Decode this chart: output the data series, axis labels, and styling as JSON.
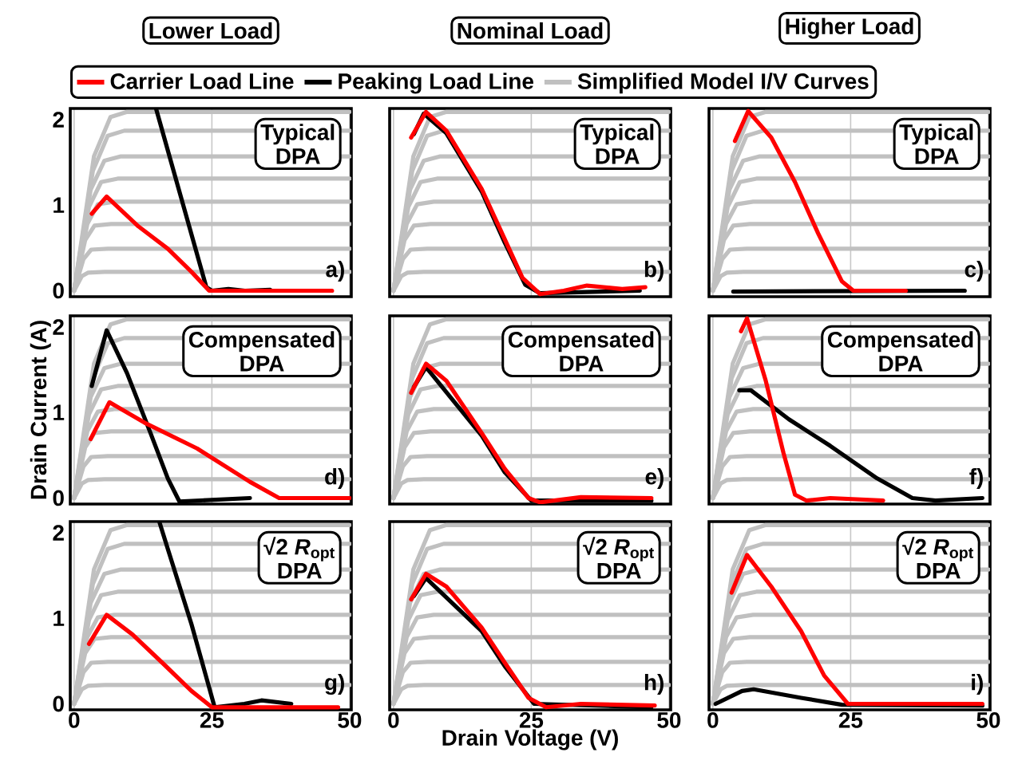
{
  "chart_data": [
    {
      "type": "line",
      "title": "Lower Load",
      "legend": "top",
      "grid": "x",
      "tick_labels": "y",
      "xlim": [
        -0.7,
        50.3
      ],
      "ylim": [
        -0.07,
        2.13
      ],
      "xticks": [
        0,
        25,
        50
      ],
      "yticks": [
        0,
        1,
        2
      ],
      "annotations": [
        "Typical",
        "DPA",
        "a)"
      ],
      "series": [
        {
          "name": "Carrier Load Line",
          "color": "#ff0000",
          "x": [
            3.2,
            5.9,
            11.7,
            17,
            21.3,
            24.5,
            30,
            46.8
          ],
          "values": [
            0.9,
            1.1,
            0.75,
            0.49,
            0.22,
            0,
            0,
            0
          ]
        },
        {
          "name": "Peaking Load Line",
          "color": "#000000",
          "x": [
            14.9,
            24,
            25,
            28,
            31,
            35.6
          ],
          "values": [
            2.12,
            0.04,
            0,
            0.02,
            0,
            0.01
          ]
        },
        {
          "name": "Simplified Model I/V Curves",
          "color": "#c0c0c0",
          "x": [
            0,
            1.4,
            2.5,
            5.5,
            50
          ],
          "values": [
            0,
            0.17,
            0.21,
            0.22,
            0.22
          ]
        },
        {
          "color": "#c0c0c0",
          "x": [
            0,
            1.7,
            3.1,
            6.1,
            50
          ],
          "values": [
            0,
            0.37,
            0.48,
            0.49,
            0.49
          ]
        },
        {
          "color": "#c0c0c0",
          "x": [
            0,
            2,
            3.7,
            6.7,
            50
          ],
          "values": [
            0,
            0.59,
            0.76,
            0.78,
            0.78
          ]
        },
        {
          "color": "#c0c0c0",
          "x": [
            0,
            2.4,
            4.3,
            7.3,
            50
          ],
          "values": [
            0,
            0.78,
            1.01,
            1.04,
            1.04
          ]
        },
        {
          "color": "#c0c0c0",
          "x": [
            0,
            2.7,
            4.9,
            7.9,
            50
          ],
          "values": [
            0,
            0.98,
            1.27,
            1.31,
            1.31
          ]
        },
        {
          "color": "#c0c0c0",
          "x": [
            0,
            3,
            5.5,
            8.5,
            50
          ],
          "values": [
            0,
            1.18,
            1.52,
            1.57,
            1.57
          ]
        },
        {
          "color": "#c0c0c0",
          "x": [
            0,
            3.4,
            6.1,
            9.1,
            50
          ],
          "values": [
            0,
            1.4,
            1.81,
            1.87,
            1.87
          ]
        },
        {
          "color": "#c0c0c0",
          "x": [
            0,
            3.6,
            6.6,
            9.6,
            50
          ],
          "values": [
            0,
            1.57,
            2.03,
            2.09,
            2.09
          ]
        }
      ]
    },
    {
      "type": "line",
      "title": "Nominal Load",
      "grid": "x",
      "tick_labels": false,
      "xlim": [
        -0.7,
        50.3
      ],
      "ylim": [
        -0.07,
        2.13
      ],
      "xticks": [
        0,
        25,
        50
      ],
      "yticks": [
        0,
        1,
        2
      ],
      "annotations": [
        "Typical",
        "DPA",
        "b)"
      ],
      "series": [
        {
          "color": "#ff0000",
          "x": [
            3.2,
            5.9,
            9.6,
            16,
            20.2,
            23.4,
            26.6,
            30.9,
            35.1,
            41.5,
            45.7
          ],
          "values": [
            1.79,
            2.09,
            1.87,
            1.19,
            0.6,
            0.15,
            -0.04,
            0,
            0.06,
            0.02,
            0.04
          ]
        },
        {
          "color": "#000000",
          "x": [
            3.7,
            5.5,
            9.6,
            16,
            20.2,
            23.9,
            26.6,
            44.7
          ],
          "values": [
            1.83,
            2.07,
            1.84,
            1.16,
            0.56,
            0.07,
            -0.03,
            0
          ]
        },
        {
          "color": "#c0c0c0",
          "x": [
            0,
            1.4,
            2.5,
            5.5,
            50
          ],
          "values": [
            0,
            0.17,
            0.21,
            0.22,
            0.22
          ]
        },
        {
          "color": "#c0c0c0",
          "x": [
            0,
            1.7,
            3.1,
            6.1,
            50
          ],
          "values": [
            0,
            0.37,
            0.48,
            0.49,
            0.49
          ]
        },
        {
          "color": "#c0c0c0",
          "x": [
            0,
            2,
            3.7,
            6.7,
            50
          ],
          "values": [
            0,
            0.59,
            0.76,
            0.78,
            0.78
          ]
        },
        {
          "color": "#c0c0c0",
          "x": [
            0,
            2.4,
            4.3,
            7.3,
            50
          ],
          "values": [
            0,
            0.78,
            1.01,
            1.04,
            1.04
          ]
        },
        {
          "color": "#c0c0c0",
          "x": [
            0,
            2.7,
            4.9,
            7.9,
            50
          ],
          "values": [
            0,
            0.98,
            1.27,
            1.31,
            1.31
          ]
        },
        {
          "color": "#c0c0c0",
          "x": [
            0,
            3,
            5.5,
            8.5,
            50
          ],
          "values": [
            0,
            1.18,
            1.52,
            1.57,
            1.57
          ]
        },
        {
          "color": "#c0c0c0",
          "x": [
            0,
            3.4,
            6.1,
            9.1,
            50
          ],
          "values": [
            0,
            1.4,
            1.81,
            1.87,
            1.87
          ]
        },
        {
          "color": "#c0c0c0",
          "x": [
            0,
            3.6,
            6.6,
            9.6,
            50
          ],
          "values": [
            0,
            1.57,
            2.03,
            2.09,
            2.09
          ]
        }
      ]
    },
    {
      "type": "line",
      "title": "Higher Load",
      "grid": "x",
      "tick_labels": false,
      "xlim": [
        -0.7,
        50.3
      ],
      "ylim": [
        -0.07,
        2.13
      ],
      "xticks": [
        0,
        25,
        50
      ],
      "yticks": [
        0,
        1,
        2
      ],
      "annotations": [
        "Typical",
        "DPA",
        "c)"
      ],
      "series": [
        {
          "color": "#ff0000",
          "x": [
            4,
            6.4,
            10.6,
            14.9,
            19.1,
            23.4,
            25.5,
            35
          ],
          "values": [
            1.75,
            2.1,
            1.79,
            1.27,
            0.67,
            0.11,
            0,
            0
          ]
        },
        {
          "color": "#000000",
          "x": [
            3.7,
            45.7
          ],
          "values": [
            -0.01,
            0
          ]
        },
        {
          "color": "#c0c0c0",
          "x": [
            0,
            1.4,
            2.5,
            5.5,
            50
          ],
          "values": [
            0,
            0.17,
            0.21,
            0.22,
            0.22
          ]
        },
        {
          "color": "#c0c0c0",
          "x": [
            0,
            1.7,
            3.1,
            6.1,
            50
          ],
          "values": [
            0,
            0.37,
            0.48,
            0.49,
            0.49
          ]
        },
        {
          "color": "#c0c0c0",
          "x": [
            0,
            2,
            3.7,
            6.7,
            50
          ],
          "values": [
            0,
            0.59,
            0.76,
            0.78,
            0.78
          ]
        },
        {
          "color": "#c0c0c0",
          "x": [
            0,
            2.4,
            4.3,
            7.3,
            50
          ],
          "values": [
            0,
            0.78,
            1.01,
            1.04,
            1.04
          ]
        },
        {
          "color": "#c0c0c0",
          "x": [
            0,
            2.7,
            4.9,
            7.9,
            50
          ],
          "values": [
            0,
            0.98,
            1.27,
            1.31,
            1.31
          ]
        },
        {
          "color": "#c0c0c0",
          "x": [
            0,
            3,
            5.5,
            8.5,
            50
          ],
          "values": [
            0,
            1.18,
            1.52,
            1.57,
            1.57
          ]
        },
        {
          "color": "#c0c0c0",
          "x": [
            0,
            3.4,
            6.1,
            9.1,
            50
          ],
          "values": [
            0,
            1.4,
            1.81,
            1.87,
            1.87
          ]
        },
        {
          "color": "#c0c0c0",
          "x": [
            0,
            3.6,
            6.6,
            9.6,
            50
          ],
          "values": [
            0,
            1.57,
            2.03,
            2.09,
            2.09
          ]
        }
      ]
    },
    {
      "type": "line",
      "ylabel": "Drain Current (A)",
      "grid": "x",
      "tick_labels": "y",
      "xlim": [
        -0.7,
        50.3
      ],
      "ylim": [
        -0.07,
        2.13
      ],
      "xticks": [
        0,
        25,
        50
      ],
      "yticks": [
        0,
        1,
        2
      ],
      "annotations": [
        "Compensated",
        "DPA",
        "d)"
      ],
      "series": [
        {
          "color": "#ff0000",
          "x": [
            3,
            6.4,
            12.8,
            22.3,
            31.9,
            37.2,
            50
          ],
          "values": [
            0.69,
            1.12,
            0.88,
            0.58,
            0.19,
            0,
            0
          ]
        },
        {
          "color": "#000000",
          "x": [
            3.2,
            5.9,
            9.6,
            13.8,
            17,
            19.1,
            31.9
          ],
          "values": [
            1.31,
            1.96,
            1.46,
            0.77,
            0.23,
            -0.04,
            0
          ]
        },
        {
          "color": "#c0c0c0",
          "x": [
            0,
            1.4,
            2.5,
            5.5,
            50
          ],
          "values": [
            0,
            0.17,
            0.21,
            0.22,
            0.22
          ]
        },
        {
          "color": "#c0c0c0",
          "x": [
            0,
            1.7,
            3.1,
            6.1,
            50
          ],
          "values": [
            0,
            0.37,
            0.48,
            0.49,
            0.49
          ]
        },
        {
          "color": "#c0c0c0",
          "x": [
            0,
            2,
            3.7,
            6.7,
            50
          ],
          "values": [
            0,
            0.59,
            0.76,
            0.78,
            0.78
          ]
        },
        {
          "color": "#c0c0c0",
          "x": [
            0,
            2.4,
            4.3,
            7.3,
            50
          ],
          "values": [
            0,
            0.78,
            1.01,
            1.04,
            1.04
          ]
        },
        {
          "color": "#c0c0c0",
          "x": [
            0,
            2.7,
            4.9,
            7.9,
            50
          ],
          "values": [
            0,
            0.98,
            1.27,
            1.31,
            1.31
          ]
        },
        {
          "color": "#c0c0c0",
          "x": [
            0,
            3,
            5.5,
            8.5,
            50
          ],
          "values": [
            0,
            1.18,
            1.52,
            1.57,
            1.57
          ]
        },
        {
          "color": "#c0c0c0",
          "x": [
            0,
            3.4,
            6.1,
            9.1,
            50
          ],
          "values": [
            0,
            1.4,
            1.81,
            1.87,
            1.87
          ]
        },
        {
          "color": "#c0c0c0",
          "x": [
            0,
            3.6,
            6.6,
            9.6,
            50
          ],
          "values": [
            0,
            1.57,
            2.03,
            2.09,
            2.09
          ]
        }
      ]
    },
    {
      "type": "line",
      "grid": "x",
      "tick_labels": false,
      "xlim": [
        -0.7,
        50.3
      ],
      "ylim": [
        -0.07,
        2.13
      ],
      "xticks": [
        0,
        25,
        50
      ],
      "yticks": [
        0,
        1,
        2
      ],
      "annotations": [
        "Compensated",
        "DPA",
        "e)"
      ],
      "series": [
        {
          "color": "#ff0000",
          "x": [
            3.2,
            5.9,
            9.6,
            16,
            20.2,
            24.5,
            26.6,
            34,
            46.8
          ],
          "values": [
            1.23,
            1.57,
            1.37,
            0.76,
            0.34,
            0,
            -0.05,
            0.01,
            0
          ]
        },
        {
          "color": "#000000",
          "x": [
            3.7,
            5.9,
            16,
            20.2,
            25,
            46.8
          ],
          "values": [
            1.3,
            1.53,
            0.73,
            0.3,
            -0.03,
            -0.03
          ]
        },
        {
          "color": "#c0c0c0",
          "x": [
            0,
            1.4,
            2.5,
            5.5,
            50
          ],
          "values": [
            0,
            0.17,
            0.21,
            0.22,
            0.22
          ]
        },
        {
          "color": "#c0c0c0",
          "x": [
            0,
            1.7,
            3.1,
            6.1,
            50
          ],
          "values": [
            0,
            0.37,
            0.48,
            0.49,
            0.49
          ]
        },
        {
          "color": "#c0c0c0",
          "x": [
            0,
            2,
            3.7,
            6.7,
            50
          ],
          "values": [
            0,
            0.59,
            0.76,
            0.78,
            0.78
          ]
        },
        {
          "color": "#c0c0c0",
          "x": [
            0,
            2.4,
            4.3,
            7.3,
            50
          ],
          "values": [
            0,
            0.78,
            1.01,
            1.04,
            1.04
          ]
        },
        {
          "color": "#c0c0c0",
          "x": [
            0,
            2.7,
            4.9,
            7.9,
            50
          ],
          "values": [
            0,
            0.98,
            1.27,
            1.31,
            1.31
          ]
        },
        {
          "color": "#c0c0c0",
          "x": [
            0,
            3,
            5.5,
            8.5,
            50
          ],
          "values": [
            0,
            1.18,
            1.52,
            1.57,
            1.57
          ]
        },
        {
          "color": "#c0c0c0",
          "x": [
            0,
            3.4,
            6.1,
            9.1,
            50
          ],
          "values": [
            0,
            1.4,
            1.81,
            1.87,
            1.87
          ]
        },
        {
          "color": "#c0c0c0",
          "x": [
            0,
            3.6,
            6.6,
            9.6,
            50
          ],
          "values": [
            0,
            1.57,
            2.03,
            2.09,
            2.09
          ]
        }
      ]
    },
    {
      "type": "line",
      "grid": "x",
      "tick_labels": false,
      "xlim": [
        -0.7,
        50.3
      ],
      "ylim": [
        -0.07,
        2.13
      ],
      "xticks": [
        0,
        25,
        50
      ],
      "yticks": [
        0,
        1,
        2
      ],
      "annotations": [
        "Compensated",
        "DPA",
        "f)"
      ],
      "series": [
        {
          "color": "#ff0000",
          "x": [
            5.1,
            6.2,
            9.6,
            12.8,
            14.9,
            17,
            21.3,
            30.9
          ],
          "values": [
            1.95,
            2.1,
            1.37,
            0.53,
            0.04,
            -0.03,
            0,
            -0.03
          ]
        },
        {
          "color": "#000000",
          "x": [
            4.8,
            6.9,
            13.8,
            21.3,
            29.8,
            36.2,
            40.4,
            48.9
          ],
          "values": [
            1.26,
            1.26,
            0.92,
            0.61,
            0.23,
            0,
            -0.03,
            0
          ]
        },
        {
          "color": "#c0c0c0",
          "x": [
            0,
            1.4,
            2.5,
            5.5,
            50
          ],
          "values": [
            0,
            0.17,
            0.21,
            0.22,
            0.22
          ]
        },
        {
          "color": "#c0c0c0",
          "x": [
            0,
            1.7,
            3.1,
            6.1,
            50
          ],
          "values": [
            0,
            0.37,
            0.48,
            0.49,
            0.49
          ]
        },
        {
          "color": "#c0c0c0",
          "x": [
            0,
            2,
            3.7,
            6.7,
            50
          ],
          "values": [
            0,
            0.59,
            0.76,
            0.78,
            0.78
          ]
        },
        {
          "color": "#c0c0c0",
          "x": [
            0,
            2.4,
            4.3,
            7.3,
            50
          ],
          "values": [
            0,
            0.78,
            1.01,
            1.04,
            1.04
          ]
        },
        {
          "color": "#c0c0c0",
          "x": [
            0,
            2.7,
            4.9,
            7.9,
            50
          ],
          "values": [
            0,
            0.98,
            1.27,
            1.31,
            1.31
          ]
        },
        {
          "color": "#c0c0c0",
          "x": [
            0,
            3,
            5.5,
            8.5,
            50
          ],
          "values": [
            0,
            1.18,
            1.52,
            1.57,
            1.57
          ]
        },
        {
          "color": "#c0c0c0",
          "x": [
            0,
            3.4,
            6.1,
            9.1,
            50
          ],
          "values": [
            0,
            1.4,
            1.81,
            1.87,
            1.87
          ]
        },
        {
          "color": "#c0c0c0",
          "x": [
            0,
            3.6,
            6.6,
            9.6,
            50
          ],
          "values": [
            0,
            1.57,
            2.03,
            2.09,
            2.09
          ]
        }
      ]
    },
    {
      "type": "line",
      "grid": "x",
      "xlim": [
        -0.7,
        50.3
      ],
      "ylim": [
        -0.07,
        2.13
      ],
      "xticks": [
        0,
        25,
        50
      ],
      "yticks": [
        0,
        1,
        2
      ],
      "annotations": [
        "√2 *R*$_{opt}$",
        "DPA",
        "g)"
      ],
      "series": [
        {
          "color": "#ff0000",
          "x": [
            2.7,
            5.9,
            10.6,
            16,
            21.3,
            25,
            47.9
          ],
          "values": [
            0.7,
            1.04,
            0.81,
            0.48,
            0.15,
            -0.04,
            -0.04
          ]
        },
        {
          "color": "#000000",
          "x": [
            15.5,
            17,
            21.3,
            23.9,
            25.5,
            30.9,
            34,
            39.4
          ],
          "values": [
            2.12,
            1.81,
            0.93,
            0.33,
            -0.04,
            0,
            0.04,
            0
          ]
        },
        {
          "color": "#c0c0c0",
          "x": [
            0,
            1.4,
            2.5,
            5.5,
            50
          ],
          "values": [
            0,
            0.17,
            0.21,
            0.22,
            0.22
          ]
        },
        {
          "color": "#c0c0c0",
          "x": [
            0,
            1.7,
            3.1,
            6.1,
            50
          ],
          "values": [
            0,
            0.37,
            0.48,
            0.49,
            0.49
          ]
        },
        {
          "color": "#c0c0c0",
          "x": [
            0,
            2,
            3.7,
            6.7,
            50
          ],
          "values": [
            0,
            0.59,
            0.76,
            0.78,
            0.78
          ]
        },
        {
          "color": "#c0c0c0",
          "x": [
            0,
            2.4,
            4.3,
            7.3,
            50
          ],
          "values": [
            0,
            0.78,
            1.01,
            1.04,
            1.04
          ]
        },
        {
          "color": "#c0c0c0",
          "x": [
            0,
            2.7,
            4.9,
            7.9,
            50
          ],
          "values": [
            0,
            0.98,
            1.27,
            1.31,
            1.31
          ]
        },
        {
          "color": "#c0c0c0",
          "x": [
            0,
            3,
            5.5,
            8.5,
            50
          ],
          "values": [
            0,
            1.18,
            1.52,
            1.57,
            1.57
          ]
        },
        {
          "color": "#c0c0c0",
          "x": [
            0,
            3.4,
            6.1,
            9.1,
            50
          ],
          "values": [
            0,
            1.4,
            1.81,
            1.87,
            1.87
          ]
        },
        {
          "color": "#c0c0c0",
          "x": [
            0,
            3.6,
            6.6,
            9.6,
            50
          ],
          "values": [
            0,
            1.57,
            2.03,
            2.09,
            2.09
          ]
        }
      ]
    },
    {
      "type": "line",
      "xlabel": "Drain Voltage (V)",
      "grid": "x",
      "tick_labels": "x",
      "xlim": [
        -0.7,
        50.3
      ],
      "ylim": [
        -0.07,
        2.13
      ],
      "xticks": [
        0,
        25,
        50
      ],
      "yticks": [
        0,
        1,
        2
      ],
      "annotations": [
        "√2 *R*$_{opt}$",
        "DPA",
        "h)"
      ],
      "series": [
        {
          "color": "#ff0000",
          "x": [
            3.2,
            5.9,
            9.6,
            16,
            20.2,
            24.5,
            27.7,
            34,
            47.4
          ],
          "values": [
            1.22,
            1.52,
            1.37,
            0.89,
            0.48,
            0.07,
            -0.04,
            0,
            -0.02
          ]
        },
        {
          "color": "#000000",
          "x": [
            3.7,
            5.9,
            16,
            20.2,
            25.5,
            46.8
          ],
          "values": [
            1.26,
            1.47,
            0.85,
            0.44,
            0,
            -0.04
          ]
        },
        {
          "color": "#c0c0c0",
          "x": [
            0,
            1.4,
            2.5,
            5.5,
            50
          ],
          "values": [
            0,
            0.17,
            0.21,
            0.22,
            0.22
          ]
        },
        {
          "color": "#c0c0c0",
          "x": [
            0,
            1.7,
            3.1,
            6.1,
            50
          ],
          "values": [
            0,
            0.37,
            0.48,
            0.49,
            0.49
          ]
        },
        {
          "color": "#c0c0c0",
          "x": [
            0,
            2,
            3.7,
            6.7,
            50
          ],
          "values": [
            0,
            0.59,
            0.76,
            0.78,
            0.78
          ]
        },
        {
          "color": "#c0c0c0",
          "x": [
            0,
            2.4,
            4.3,
            7.3,
            50
          ],
          "values": [
            0,
            0.78,
            1.01,
            1.04,
            1.04
          ]
        },
        {
          "color": "#c0c0c0",
          "x": [
            0,
            2.7,
            4.9,
            7.9,
            50
          ],
          "values": [
            0,
            0.98,
            1.27,
            1.31,
            1.31
          ]
        },
        {
          "color": "#c0c0c0",
          "x": [
            0,
            3,
            5.5,
            8.5,
            50
          ],
          "values": [
            0,
            1.18,
            1.52,
            1.57,
            1.57
          ]
        },
        {
          "color": "#c0c0c0",
          "x": [
            0,
            3.4,
            6.1,
            9.1,
            50
          ],
          "values": [
            0,
            1.4,
            1.81,
            1.87,
            1.87
          ]
        },
        {
          "color": "#c0c0c0",
          "x": [
            0,
            3.6,
            6.6,
            9.6,
            50
          ],
          "values": [
            0,
            1.57,
            2.03,
            2.09,
            2.09
          ]
        }
      ]
    },
    {
      "type": "line",
      "grid": "x",
      "tick_labels": "x",
      "xlim": [
        -0.7,
        50.3
      ],
      "ylim": [
        -0.07,
        2.13
      ],
      "xticks": [
        0,
        25,
        50
      ],
      "yticks": [
        0,
        1,
        2
      ],
      "annotations": [
        "√2 *R*$_{opt}$",
        "DPA",
        "i)"
      ],
      "series": [
        {
          "color": "#ff0000",
          "x": [
            3.4,
            6.2,
            10.6,
            16,
            20.2,
            24.5,
            48.9
          ],
          "values": [
            1.3,
            1.74,
            1.37,
            0.85,
            0.33,
            0,
            0
          ]
        },
        {
          "color": "#000000",
          "x": [
            0.5,
            5.3,
            7.4,
            16,
            23.4,
            48.9
          ],
          "values": [
            0,
            0.15,
            0.17,
            0.07,
            -0.01,
            -0.02
          ]
        },
        {
          "color": "#c0c0c0",
          "x": [
            0,
            1.4,
            2.5,
            5.5,
            50
          ],
          "values": [
            0,
            0.17,
            0.21,
            0.22,
            0.22
          ]
        },
        {
          "color": "#c0c0c0",
          "x": [
            0,
            1.7,
            3.1,
            6.1,
            50
          ],
          "values": [
            0,
            0.37,
            0.48,
            0.49,
            0.49
          ]
        },
        {
          "color": "#c0c0c0",
          "x": [
            0,
            2,
            3.7,
            6.7,
            50
          ],
          "values": [
            0,
            0.59,
            0.76,
            0.78,
            0.78
          ]
        },
        {
          "color": "#c0c0c0",
          "x": [
            0,
            2.4,
            4.3,
            7.3,
            50
          ],
          "values": [
            0,
            0.78,
            1.01,
            1.04,
            1.04
          ]
        },
        {
          "color": "#c0c0c0",
          "x": [
            0,
            2.7,
            4.9,
            7.9,
            50
          ],
          "values": [
            0,
            0.98,
            1.27,
            1.31,
            1.31
          ]
        },
        {
          "color": "#c0c0c0",
          "x": [
            0,
            3,
            5.5,
            8.5,
            50
          ],
          "values": [
            0,
            1.18,
            1.52,
            1.57,
            1.57
          ]
        },
        {
          "color": "#c0c0c0",
          "x": [
            0,
            3.4,
            6.1,
            9.1,
            50
          ],
          "values": [
            0,
            1.4,
            1.81,
            1.87,
            1.87
          ]
        },
        {
          "color": "#c0c0c0",
          "x": [
            0,
            3.6,
            6.6,
            9.6,
            50
          ],
          "values": [
            0,
            1.57,
            2.03,
            2.09,
            2.09
          ]
        }
      ]
    }
  ]
}
